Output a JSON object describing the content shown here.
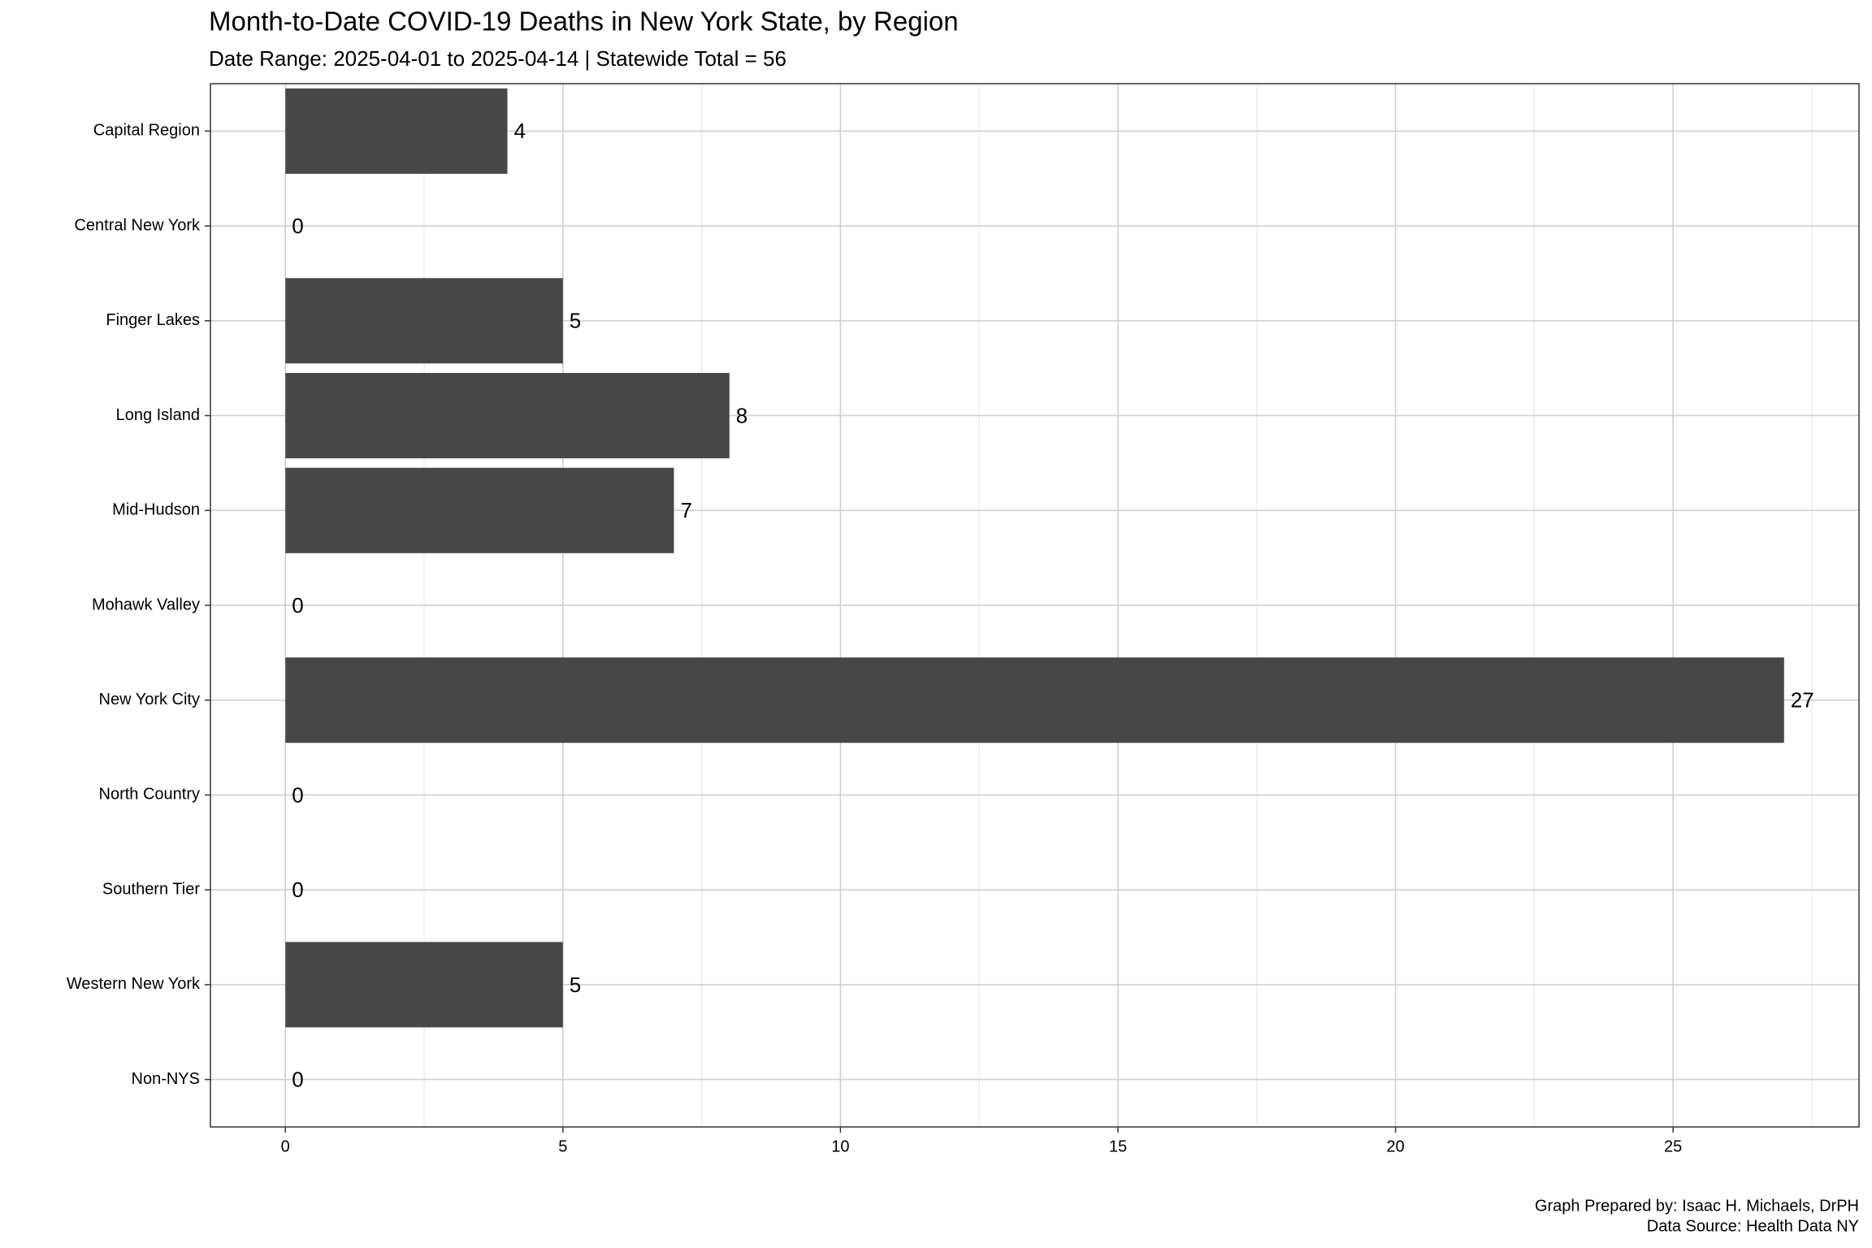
{
  "chart_data": {
    "type": "bar",
    "orientation": "horizontal",
    "title": "Month-to-Date COVID-19 Deaths in New York State, by Region",
    "subtitle": "Date Range: 2025-04-01 to 2025-04-14 | Statewide Total = 56",
    "categories": [
      "Capital Region",
      "Central New York",
      "Finger Lakes",
      "Long Island",
      "Mid-Hudson",
      "Mohawk Valley",
      "New York City",
      "North Country",
      "Southern Tier",
      "Western New York",
      "Non-NYS"
    ],
    "values": [
      4,
      0,
      5,
      8,
      7,
      0,
      27,
      0,
      0,
      5,
      0
    ],
    "color": "#474747",
    "xlim": [
      -1.35,
      28.35
    ],
    "xticks": [
      0,
      5,
      10,
      15,
      20,
      25
    ],
    "xticks_minor": [
      2.5,
      7.5,
      12.5,
      17.5,
      22.5,
      27.5
    ],
    "grid": true,
    "caption": [
      "Graph Prepared by: Isaac H. Michaels, DrPH",
      "Data Source: Health Data NY"
    ]
  }
}
